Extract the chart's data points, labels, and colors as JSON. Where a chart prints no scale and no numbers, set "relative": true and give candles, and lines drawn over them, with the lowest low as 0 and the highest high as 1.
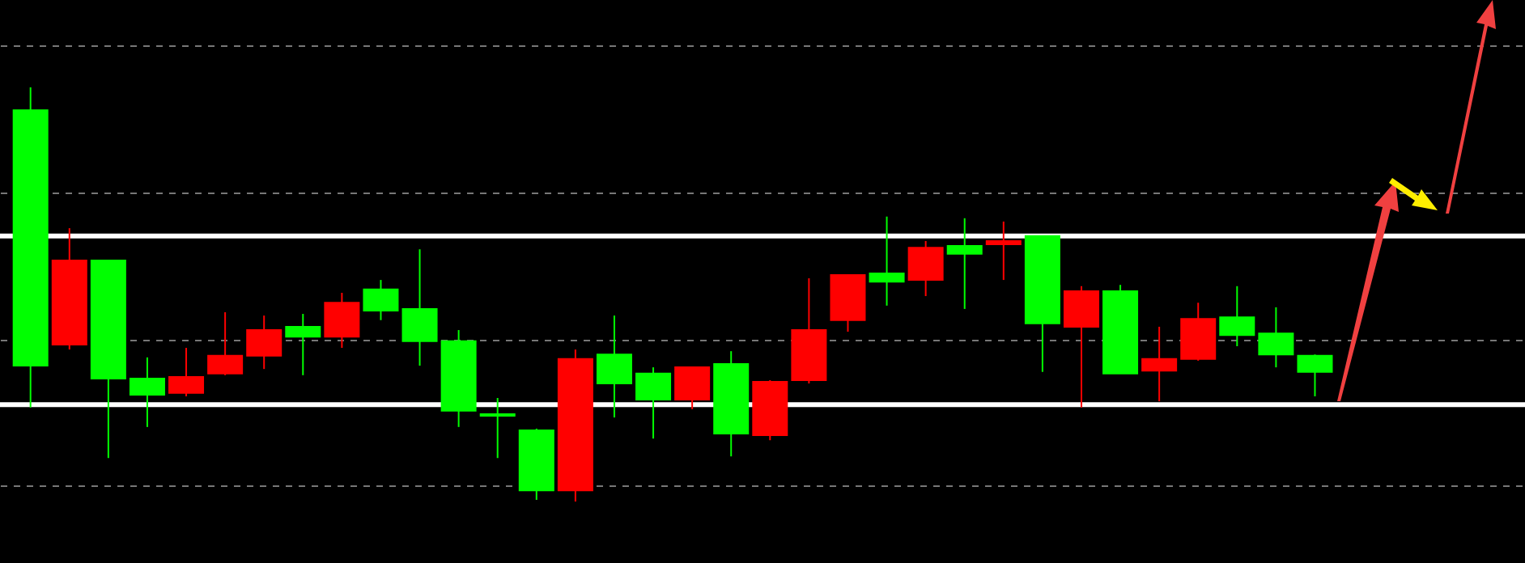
{
  "chart_data": {
    "type": "candlestick",
    "relative": true,
    "grid": true,
    "categories": [
      null,
      null,
      null,
      null,
      null,
      null,
      null,
      null,
      null,
      null,
      null,
      null,
      null,
      null,
      null,
      null,
      null,
      null,
      null,
      null,
      null,
      null,
      null,
      null,
      null,
      null,
      null,
      null,
      null,
      null,
      null,
      null,
      null,
      null
    ],
    "ohlc": [
      [
        0.945,
        1,
        0.227,
        0.328
      ],
      [
        0.379,
        0.66,
        0.367,
        0.582
      ],
      [
        0.582,
        0.582,
        0.105,
        0.297
      ],
      [
        0.297,
        0.348,
        0.18,
        0.258
      ],
      [
        0.262,
        0.371,
        0.254,
        0.301
      ],
      [
        0.309,
        0.457,
        0.305,
        0.352
      ],
      [
        0.352,
        0.449,
        0.32,
        0.414
      ],
      [
        0.422,
        0.453,
        0.305,
        0.398
      ],
      [
        0.398,
        0.504,
        0.371,
        0.48
      ],
      [
        0.512,
        0.535,
        0.438,
        0.461
      ],
      [
        0.465,
        0.609,
        0.328,
        0.387
      ],
      [
        0.387,
        0.414,
        0.18,
        0.219
      ],
      [
        0.211,
        0.25,
        0.105,
        0.207
      ],
      [
        0.172,
        0.176,
        0.004,
        0.027
      ],
      [
        0.027,
        0.367,
        0,
        0.344
      ],
      [
        0.355,
        0.449,
        0.203,
        0.285
      ],
      [
        0.309,
        0.324,
        0.152,
        0.246
      ],
      [
        0.246,
        0.324,
        0.223,
        0.324
      ],
      [
        0.332,
        0.363,
        0.109,
        0.164
      ],
      [
        0.16,
        0.293,
        0.148,
        0.289
      ],
      [
        0.293,
        0.539,
        0.285,
        0.414
      ],
      [
        0.438,
        0.547,
        0.41,
        0.547
      ],
      [
        0.551,
        0.688,
        0.473,
        0.531
      ],
      [
        0.535,
        0.629,
        0.496,
        0.613
      ],
      [
        0.617,
        0.684,
        0.465,
        0.598
      ],
      [
        0.621,
        0.676,
        0.535,
        0.629
      ],
      [
        0.641,
        0.641,
        0.313,
        0.43
      ],
      [
        0.422,
        0.52,
        0.227,
        0.508
      ],
      [
        0.508,
        0.523,
        0.309,
        0.309
      ],
      [
        0.316,
        0.422,
        0.242,
        0.344
      ],
      [
        0.344,
        0.48,
        0.34,
        0.441
      ],
      [
        0.445,
        0.52,
        0.375,
        0.402
      ],
      [
        0.406,
        0.469,
        0.324,
        0.355
      ],
      [
        0.352,
        0.355,
        0.254,
        0.313
      ]
    ],
    "colors": [
      "#00ff00",
      "#ff0000",
      "#00ff00",
      "#00ff00",
      "#ff0000",
      "#ff0000",
      "#ff0000",
      "#00ff00",
      "#ff0000",
      "#00ff00",
      "#00ff00",
      "#00ff00",
      "#00ff00",
      "#00ff00",
      "#ff0000",
      "#00ff00",
      "#00ff00",
      "#ff0000",
      "#00ff00",
      "#ff0000",
      "#ff0000",
      "#ff0000",
      "#00ff00",
      "#ff0000",
      "#00ff00",
      "#ff0000",
      "#00ff00",
      "#ff0000",
      "#00ff00",
      "#ff0000",
      "#ff0000",
      "#00ff00",
      "#00ff00",
      "#00ff00"
    ],
    "ref_lines": [
      {
        "axis": "y",
        "value": 0.641,
        "color": "#ffffff"
      },
      {
        "axis": "y",
        "value": 0.234,
        "color": "#ffffff"
      }
    ]
  }
}
